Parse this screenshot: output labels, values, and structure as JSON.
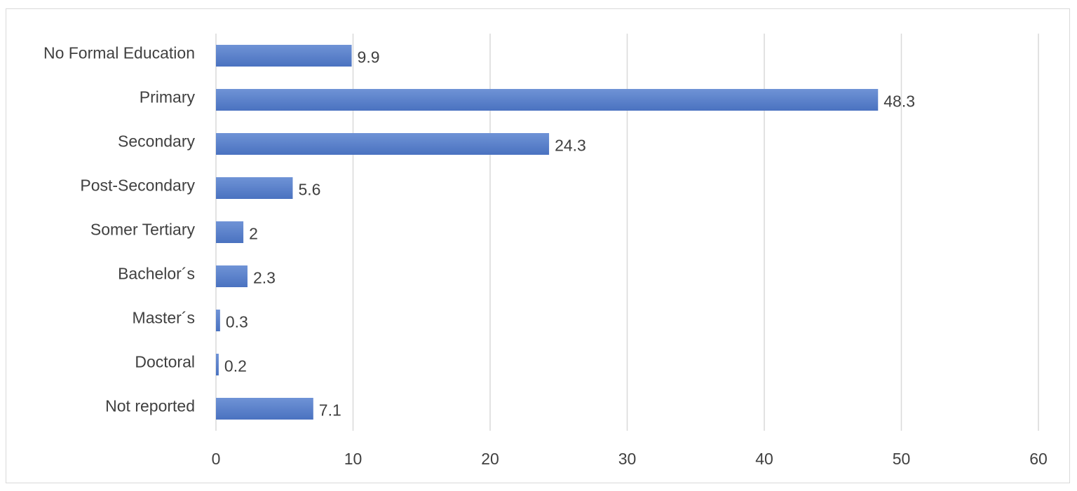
{
  "chart_data": {
    "type": "bar",
    "orientation": "horizontal",
    "categories": [
      "No Formal Education",
      "Primary",
      "Secondary",
      "Post-Secondary",
      "Somer Tertiary",
      "Bachelor´s",
      "Master´s",
      "Doctoral",
      "Not reported"
    ],
    "values": [
      9.9,
      48.3,
      24.3,
      5.6,
      2,
      2.3,
      0.3,
      0.2,
      7.1
    ],
    "data_labels": [
      "9.9",
      "48.3",
      "24.3",
      "5.6",
      "2",
      "2.3",
      "0.3",
      "0.2",
      "7.1"
    ],
    "xlim": [
      0,
      60
    ],
    "xticks": [
      0,
      10,
      20,
      30,
      40,
      50,
      60
    ],
    "xtick_labels": [
      "0",
      "10",
      "20",
      "30",
      "40",
      "50",
      "60"
    ],
    "grid": "vertical",
    "legend": "none",
    "bar_color": "#4f79c6",
    "bar_color_light": "#6d93d6",
    "title": "",
    "xlabel": "",
    "ylabel": ""
  }
}
